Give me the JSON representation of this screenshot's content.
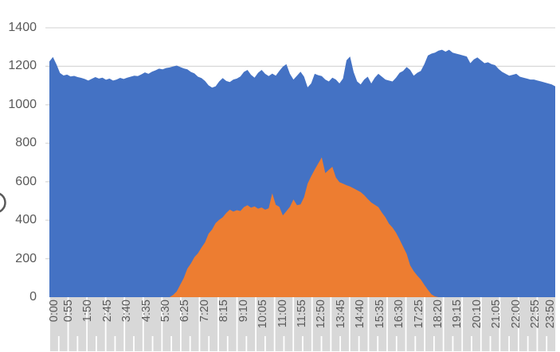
{
  "chart_data": {
    "type": "area",
    "title": "",
    "legend": "none",
    "grid": "horizontal",
    "x_axis": {
      "start_time": "0:00",
      "end_time": "23:50",
      "minutes_per_point": 10,
      "labels_rotation_deg": -90,
      "tick_labels": [
        "0:00",
        "0:55",
        "1:50",
        "2:45",
        "3:40",
        "4:35",
        "5:30",
        "6:25",
        "7:20",
        "8:15",
        "9:10",
        "10:05",
        "11:00",
        "11:55",
        "12:50",
        "13:45",
        "14:40",
        "15:35",
        "16:30",
        "17:25",
        "18:20",
        "19:15",
        "20:10",
        "21:05",
        "22:00",
        "22:55",
        "23:50"
      ]
    },
    "y_axis": {
      "ticks": [
        0,
        200,
        400,
        600,
        800,
        1000,
        1200,
        1400
      ],
      "range": [
        0,
        1400
      ],
      "partial_axis_title_letter": "O"
    },
    "series": [
      {
        "id": "blue-area",
        "color": "#4472C4",
        "values": [
          1225,
          1248,
          1210,
          1165,
          1152,
          1157,
          1147,
          1150,
          1144,
          1140,
          1134,
          1126,
          1135,
          1144,
          1136,
          1141,
          1130,
          1136,
          1126,
          1131,
          1140,
          1134,
          1141,
          1146,
          1151,
          1149,
          1158,
          1168,
          1161,
          1172,
          1179,
          1188,
          1184,
          1191,
          1194,
          1199,
          1204,
          1196,
          1189,
          1184,
          1171,
          1163,
          1146,
          1139,
          1124,
          1101,
          1089,
          1096,
          1121,
          1139,
          1124,
          1118,
          1131,
          1136,
          1147,
          1171,
          1181,
          1156,
          1141,
          1166,
          1181,
          1161,
          1149,
          1162,
          1151,
          1176,
          1198,
          1211,
          1161,
          1131,
          1151,
          1172,
          1146,
          1091,
          1111,
          1161,
          1154,
          1149,
          1131,
          1121,
          1141,
          1131,
          1111,
          1136,
          1231,
          1251,
          1171,
          1121,
          1106,
          1131,
          1146,
          1111,
          1141,
          1161,
          1146,
          1131,
          1126,
          1121,
          1141,
          1166,
          1176,
          1196,
          1181,
          1151,
          1166,
          1176,
          1211,
          1256,
          1266,
          1271,
          1281,
          1286,
          1276,
          1286,
          1271,
          1266,
          1261,
          1256,
          1251,
          1216,
          1236,
          1246,
          1231,
          1216,
          1221,
          1211,
          1206,
          1186,
          1171,
          1161,
          1151,
          1156,
          1161,
          1146,
          1141,
          1136,
          1131,
          1131,
          1126,
          1121,
          1116,
          1111,
          1106,
          1096
        ]
      },
      {
        "id": "orange-area",
        "color": "#ED7D31",
        "values": [
          0,
          0,
          0,
          0,
          0,
          0,
          0,
          0,
          0,
          0,
          0,
          0,
          0,
          0,
          0,
          0,
          0,
          0,
          0,
          0,
          0,
          0,
          0,
          0,
          0,
          0,
          0,
          0,
          0,
          0,
          0,
          0,
          0,
          0,
          0,
          12,
          30,
          65,
          100,
          148,
          175,
          208,
          228,
          258,
          285,
          330,
          352,
          385,
          402,
          415,
          438,
          455,
          445,
          452,
          448,
          468,
          478,
          465,
          472,
          460,
          466,
          455,
          462,
          540,
          480,
          470,
          425,
          447,
          470,
          508,
          478,
          482,
          520,
          590,
          628,
          663,
          695,
          727,
          645,
          662,
          678,
          622,
          598,
          590,
          582,
          575,
          566,
          556,
          546,
          530,
          510,
          492,
          480,
          468,
          440,
          415,
          382,
          362,
          335,
          300,
          262,
          225,
          165,
          135,
          112,
          92,
          64,
          38,
          15,
          4,
          0,
          0,
          0,
          0,
          0,
          0,
          0,
          0,
          0,
          0,
          0,
          0,
          0,
          0,
          0,
          0,
          0,
          0,
          0,
          0,
          0,
          0,
          0,
          0,
          0,
          0,
          0,
          0,
          0,
          0,
          0,
          0,
          0,
          0
        ]
      }
    ],
    "layout": {
      "gridline_color": "#D9D9D9",
      "band_color": "#D8D8D8",
      "band_separator_color": "#FFFFFF",
      "tick_label_color": "#595959",
      "background": "#FFFFFF"
    }
  }
}
